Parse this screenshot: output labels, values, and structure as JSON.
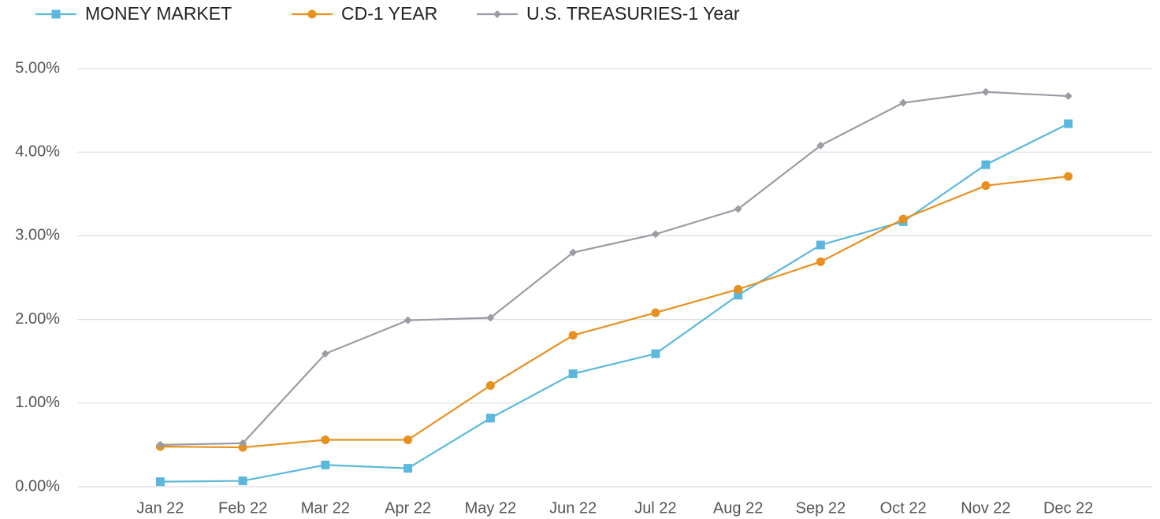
{
  "chart_data": {
    "type": "line",
    "categories": [
      "Jan 22",
      "Feb 22",
      "Mar 22",
      "Apr 22",
      "May 22",
      "Jun 22",
      "Jul 22",
      "Aug 22",
      "Sep 22",
      "Oct 22",
      "Nov 22",
      "Dec 22"
    ],
    "series": [
      {
        "name": "MONEY MARKET",
        "color": "#5bb8dc",
        "marker": "square",
        "values": [
          0.06,
          0.07,
          0.26,
          0.22,
          0.82,
          1.35,
          1.59,
          2.29,
          2.89,
          3.17,
          3.85,
          4.34
        ]
      },
      {
        "name": "CD-1 YEAR",
        "color": "#e8901e",
        "marker": "circle",
        "values": [
          0.48,
          0.47,
          0.56,
          0.56,
          1.21,
          1.81,
          2.08,
          2.36,
          2.69,
          3.2,
          3.6,
          3.71
        ]
      },
      {
        "name": "U.S. TREASURIES-1 Year",
        "color": "#9a9ca4",
        "marker": "diamond",
        "values": [
          0.5,
          0.52,
          1.59,
          1.99,
          2.02,
          2.8,
          3.02,
          3.32,
          4.08,
          4.59,
          4.72,
          4.67
        ]
      }
    ],
    "ylim": [
      0,
      5
    ],
    "yticks": [
      {
        "value": 0,
        "label": "0.00%"
      },
      {
        "value": 1,
        "label": "1.00%"
      },
      {
        "value": 2,
        "label": "2.00%"
      },
      {
        "value": 3,
        "label": "3.00%"
      },
      {
        "value": 4,
        "label": "4.00%"
      },
      {
        "value": 5,
        "label": "5.00%"
      }
    ],
    "grid": true,
    "legend": "top"
  }
}
